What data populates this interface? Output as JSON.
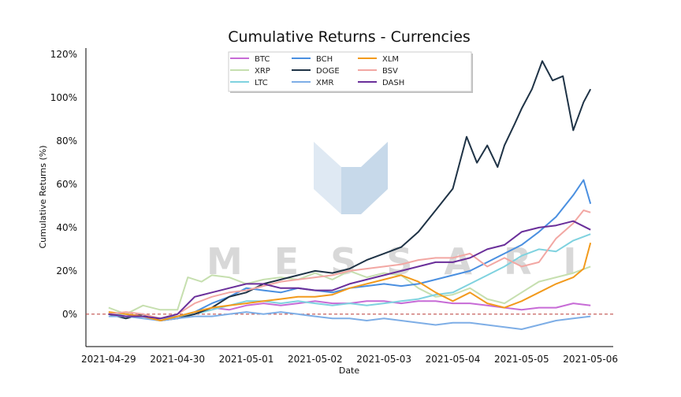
{
  "chart_data": {
    "type": "line",
    "title": "Cumulative Returns - Currencies",
    "xlabel": "Date",
    "ylabel": "Cumulative Returns (%)",
    "x_ticks": [
      "2021-04-29",
      "2021-04-30",
      "2021-05-01",
      "2021-05-02",
      "2021-05-03",
      "2021-05-04",
      "2021-05-05",
      "2021-05-06"
    ],
    "y_ticks": [
      "0%",
      "20%",
      "40%",
      "60%",
      "80%",
      "100%",
      "120%"
    ],
    "ylim": [
      -15,
      123
    ],
    "xlim": [
      -0.33,
      7.33
    ],
    "x_unit": "days since 2021-04-29",
    "grid": false,
    "legend_position": "top-center",
    "reference_line": {
      "y": 0,
      "style": "dashed",
      "color": "#c0504d"
    },
    "watermark": "MESSARI",
    "series": [
      {
        "name": "BTC",
        "color": "#c76bd6",
        "points": [
          [
            0,
            0
          ],
          [
            0.25,
            -1
          ],
          [
            0.5,
            0
          ],
          [
            0.75,
            -3
          ],
          [
            1,
            -1
          ],
          [
            1.25,
            0
          ],
          [
            1.5,
            3
          ],
          [
            1.75,
            2
          ],
          [
            2,
            4
          ],
          [
            2.25,
            5
          ],
          [
            2.5,
            4
          ],
          [
            2.75,
            5
          ],
          [
            3,
            6
          ],
          [
            3.25,
            5
          ],
          [
            3.5,
            5
          ],
          [
            3.75,
            6
          ],
          [
            4,
            6
          ],
          [
            4.25,
            5
          ],
          [
            4.5,
            6
          ],
          [
            4.75,
            6
          ],
          [
            5,
            5
          ],
          [
            5.25,
            5
          ],
          [
            5.5,
            4
          ],
          [
            5.75,
            3
          ],
          [
            6,
            2
          ],
          [
            6.25,
            3
          ],
          [
            6.5,
            3
          ],
          [
            6.75,
            5
          ],
          [
            7,
            4
          ]
        ]
      },
      {
        "name": "XRP",
        "color": "#c6dfaf",
        "points": [
          [
            0,
            3
          ],
          [
            0.25,
            0
          ],
          [
            0.5,
            4
          ],
          [
            0.75,
            2
          ],
          [
            1,
            2
          ],
          [
            1.15,
            17
          ],
          [
            1.35,
            15
          ],
          [
            1.5,
            18
          ],
          [
            1.75,
            17
          ],
          [
            2,
            14
          ],
          [
            2.25,
            16
          ],
          [
            2.5,
            17
          ],
          [
            2.75,
            16
          ],
          [
            3,
            19
          ],
          [
            3.25,
            16
          ],
          [
            3.5,
            20
          ],
          [
            3.75,
            17
          ],
          [
            4,
            19
          ],
          [
            4.25,
            18
          ],
          [
            4.5,
            12
          ],
          [
            4.75,
            8
          ],
          [
            5,
            9
          ],
          [
            5.25,
            12
          ],
          [
            5.5,
            7
          ],
          [
            5.75,
            5
          ],
          [
            6,
            10
          ],
          [
            6.25,
            15
          ],
          [
            6.5,
            17
          ],
          [
            6.75,
            19
          ],
          [
            7,
            22
          ]
        ]
      },
      {
        "name": "LTC",
        "color": "#7fd2df",
        "points": [
          [
            0,
            0
          ],
          [
            0.25,
            0
          ],
          [
            0.5,
            -1
          ],
          [
            0.75,
            -2
          ],
          [
            1,
            -1
          ],
          [
            1.25,
            0
          ],
          [
            1.5,
            2
          ],
          [
            1.75,
            4
          ],
          [
            2,
            6
          ],
          [
            2.25,
            6
          ],
          [
            2.5,
            5
          ],
          [
            2.75,
            6
          ],
          [
            3,
            5
          ],
          [
            3.25,
            4
          ],
          [
            3.5,
            5
          ],
          [
            3.75,
            4
          ],
          [
            4,
            5
          ],
          [
            4.25,
            6
          ],
          [
            4.5,
            7
          ],
          [
            4.75,
            9
          ],
          [
            5,
            10
          ],
          [
            5.25,
            14
          ],
          [
            5.5,
            18
          ],
          [
            5.75,
            22
          ],
          [
            6,
            27
          ],
          [
            6.25,
            30
          ],
          [
            6.5,
            29
          ],
          [
            6.75,
            34
          ],
          [
            7,
            37
          ]
        ]
      },
      {
        "name": "BCH",
        "color": "#4a8fe0",
        "points": [
          [
            0,
            0
          ],
          [
            0.25,
            -1
          ],
          [
            0.5,
            -1
          ],
          [
            0.75,
            -2
          ],
          [
            1,
            -1
          ],
          [
            1.25,
            1
          ],
          [
            1.5,
            5
          ],
          [
            1.75,
            8
          ],
          [
            2,
            12
          ],
          [
            2.25,
            11
          ],
          [
            2.5,
            10
          ],
          [
            2.75,
            12
          ],
          [
            3,
            11
          ],
          [
            3.25,
            10
          ],
          [
            3.5,
            12
          ],
          [
            3.75,
            13
          ],
          [
            4,
            14
          ],
          [
            4.25,
            13
          ],
          [
            4.5,
            14
          ],
          [
            4.75,
            16
          ],
          [
            5,
            18
          ],
          [
            5.25,
            20
          ],
          [
            5.5,
            24
          ],
          [
            5.75,
            28
          ],
          [
            6,
            32
          ],
          [
            6.25,
            38
          ],
          [
            6.5,
            45
          ],
          [
            6.75,
            55
          ],
          [
            6.9,
            62
          ],
          [
            7,
            51
          ]
        ]
      },
      {
        "name": "DOGE",
        "color": "#1f3346",
        "points": [
          [
            0,
            0
          ],
          [
            0.25,
            -2
          ],
          [
            0.5,
            0
          ],
          [
            0.75,
            -3
          ],
          [
            1,
            -2
          ],
          [
            1.25,
            0
          ],
          [
            1.5,
            3
          ],
          [
            1.75,
            8
          ],
          [
            2,
            10
          ],
          [
            2.25,
            14
          ],
          [
            2.5,
            16
          ],
          [
            2.75,
            18
          ],
          [
            3,
            20
          ],
          [
            3.25,
            19
          ],
          [
            3.5,
            21
          ],
          [
            3.75,
            25
          ],
          [
            4,
            28
          ],
          [
            4.25,
            31
          ],
          [
            4.5,
            38
          ],
          [
            4.75,
            48
          ],
          [
            5,
            58
          ],
          [
            5.2,
            82
          ],
          [
            5.35,
            70
          ],
          [
            5.5,
            78
          ],
          [
            5.65,
            68
          ],
          [
            5.75,
            78
          ],
          [
            5.9,
            88
          ],
          [
            6,
            95
          ],
          [
            6.15,
            104
          ],
          [
            6.3,
            117
          ],
          [
            6.45,
            108
          ],
          [
            6.6,
            110
          ],
          [
            6.75,
            85
          ],
          [
            6.9,
            98
          ],
          [
            7,
            104
          ]
        ]
      },
      {
        "name": "XMR",
        "color": "#7eaee6",
        "points": [
          [
            0,
            -1
          ],
          [
            0.25,
            -1
          ],
          [
            0.5,
            -2
          ],
          [
            0.75,
            -3
          ],
          [
            1,
            -2
          ],
          [
            1.25,
            -1
          ],
          [
            1.5,
            -1
          ],
          [
            1.75,
            0
          ],
          [
            2,
            1
          ],
          [
            2.25,
            0
          ],
          [
            2.5,
            1
          ],
          [
            2.75,
            0
          ],
          [
            3,
            -1
          ],
          [
            3.25,
            -2
          ],
          [
            3.5,
            -2
          ],
          [
            3.75,
            -3
          ],
          [
            4,
            -2
          ],
          [
            4.25,
            -3
          ],
          [
            4.5,
            -4
          ],
          [
            4.75,
            -5
          ],
          [
            5,
            -4
          ],
          [
            5.25,
            -4
          ],
          [
            5.5,
            -5
          ],
          [
            5.75,
            -6
          ],
          [
            6,
            -7
          ],
          [
            6.25,
            -5
          ],
          [
            6.5,
            -3
          ],
          [
            6.75,
            -2
          ],
          [
            7,
            -1
          ]
        ]
      },
      {
        "name": "XLM",
        "color": "#f29a1c",
        "points": [
          [
            0,
            1
          ],
          [
            0.25,
            0
          ],
          [
            0.5,
            -1
          ],
          [
            0.75,
            -3
          ],
          [
            1,
            -1
          ],
          [
            1.25,
            1
          ],
          [
            1.5,
            3
          ],
          [
            1.75,
            4
          ],
          [
            2,
            5
          ],
          [
            2.25,
            6
          ],
          [
            2.5,
            7
          ],
          [
            2.75,
            8
          ],
          [
            3,
            8
          ],
          [
            3.25,
            9
          ],
          [
            3.5,
            12
          ],
          [
            3.75,
            14
          ],
          [
            4,
            16
          ],
          [
            4.25,
            18
          ],
          [
            4.5,
            15
          ],
          [
            4.75,
            10
          ],
          [
            5,
            6
          ],
          [
            5.25,
            10
          ],
          [
            5.5,
            5
          ],
          [
            5.75,
            3
          ],
          [
            6,
            6
          ],
          [
            6.25,
            10
          ],
          [
            6.5,
            14
          ],
          [
            6.75,
            17
          ],
          [
            6.9,
            21
          ],
          [
            7,
            33
          ]
        ]
      },
      {
        "name": "BSV",
        "color": "#f2a7a3",
        "points": [
          [
            0,
            0
          ],
          [
            0.25,
            1
          ],
          [
            0.5,
            0
          ],
          [
            0.75,
            -2
          ],
          [
            1,
            0
          ],
          [
            1.25,
            5
          ],
          [
            1.5,
            8
          ],
          [
            1.75,
            10
          ],
          [
            2,
            11
          ],
          [
            2.25,
            13
          ],
          [
            2.5,
            15
          ],
          [
            2.75,
            16
          ],
          [
            3,
            17
          ],
          [
            3.25,
            18
          ],
          [
            3.5,
            20
          ],
          [
            3.75,
            21
          ],
          [
            4,
            22
          ],
          [
            4.25,
            23
          ],
          [
            4.5,
            25
          ],
          [
            4.75,
            26
          ],
          [
            5,
            26
          ],
          [
            5.25,
            28
          ],
          [
            5.5,
            22
          ],
          [
            5.75,
            26
          ],
          [
            6,
            22
          ],
          [
            6.25,
            24
          ],
          [
            6.5,
            35
          ],
          [
            6.75,
            42
          ],
          [
            6.9,
            48
          ],
          [
            7,
            47
          ]
        ]
      },
      {
        "name": "DASH",
        "color": "#6a2f9a",
        "points": [
          [
            0,
            0
          ],
          [
            0.25,
            -1
          ],
          [
            0.5,
            -1
          ],
          [
            0.75,
            -2
          ],
          [
            1,
            0
          ],
          [
            1.25,
            8
          ],
          [
            1.5,
            10
          ],
          [
            1.75,
            12
          ],
          [
            2,
            14
          ],
          [
            2.25,
            14
          ],
          [
            2.5,
            12
          ],
          [
            2.75,
            12
          ],
          [
            3,
            11
          ],
          [
            3.25,
            11
          ],
          [
            3.5,
            14
          ],
          [
            3.75,
            16
          ],
          [
            4,
            18
          ],
          [
            4.25,
            20
          ],
          [
            4.5,
            22
          ],
          [
            4.75,
            24
          ],
          [
            5,
            24
          ],
          [
            5.25,
            26
          ],
          [
            5.5,
            30
          ],
          [
            5.75,
            32
          ],
          [
            6,
            38
          ],
          [
            6.25,
            40
          ],
          [
            6.5,
            41
          ],
          [
            6.75,
            43
          ],
          [
            7,
            39
          ]
        ]
      }
    ]
  }
}
